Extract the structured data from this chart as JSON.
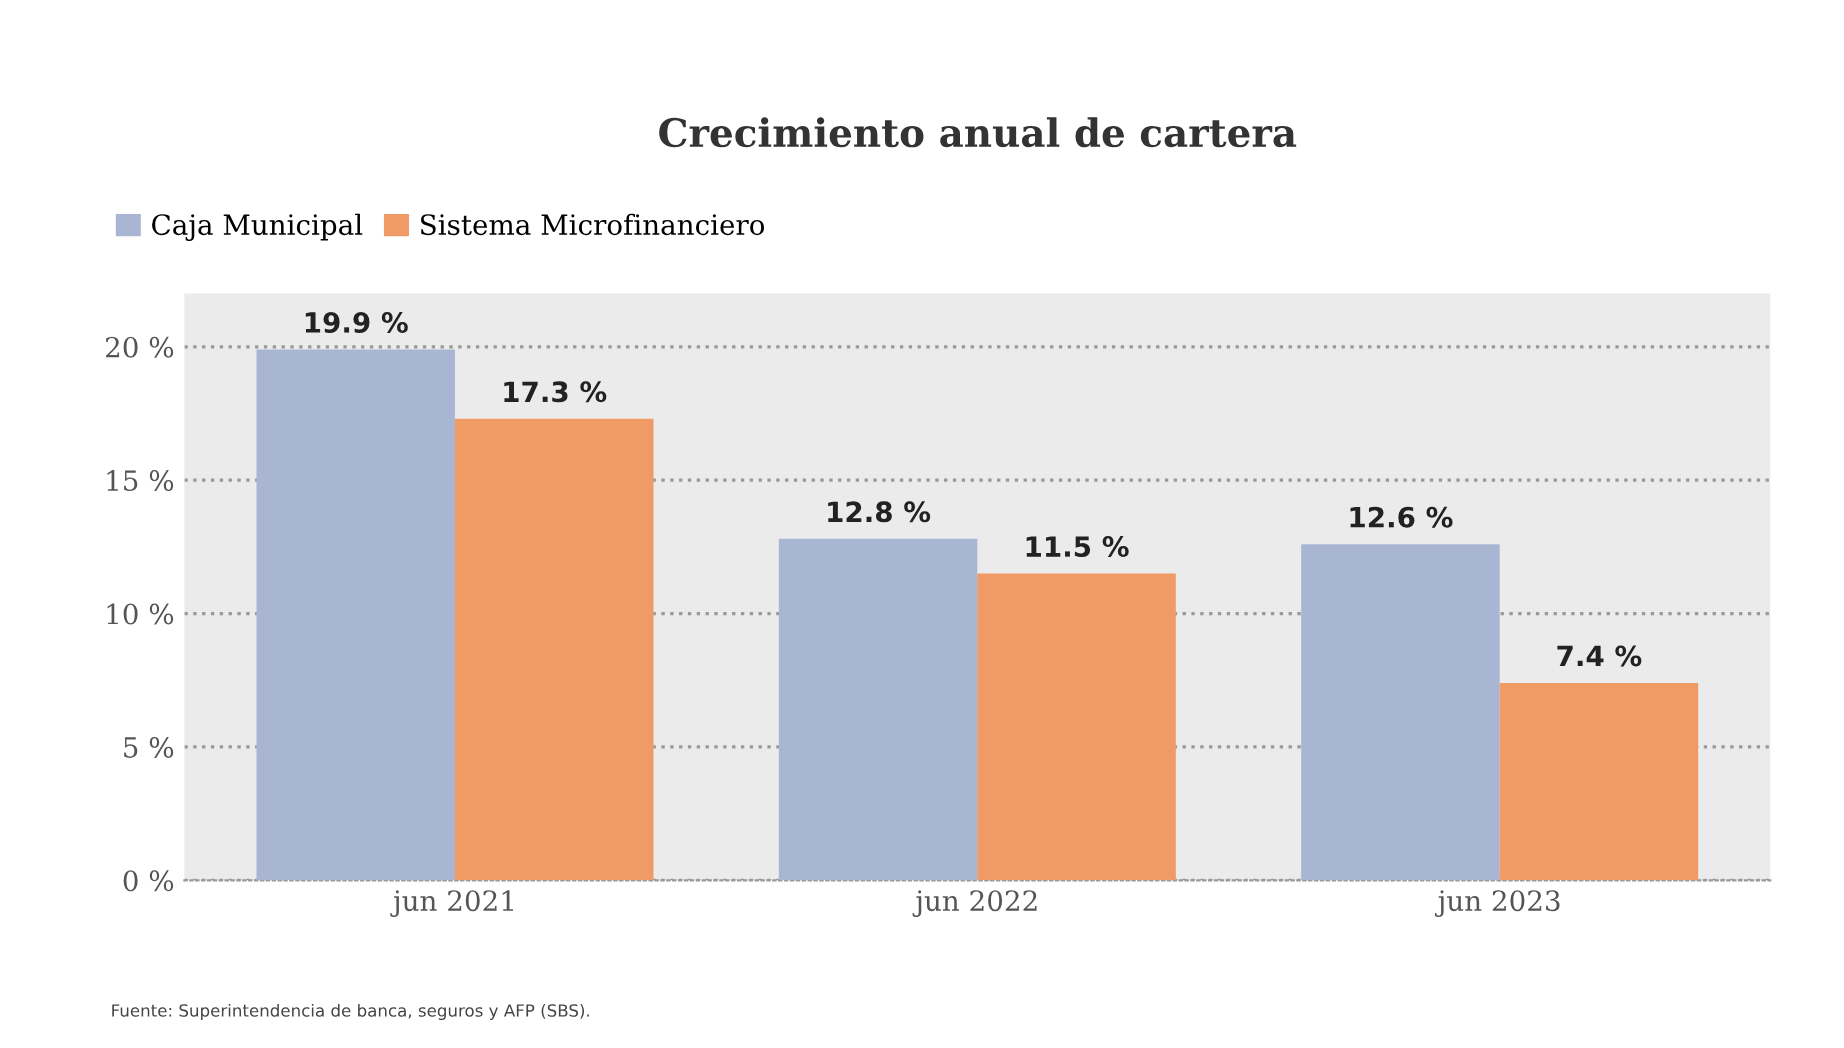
{
  "chart_data": {
    "type": "bar",
    "title": "Crecimiento anual de cartera",
    "categories": [
      "jun 2021",
      "jun 2022",
      "jun 2023"
    ],
    "series": [
      {
        "name": "Caja Municipal",
        "color": "#a9b6d3",
        "values": [
          19.9,
          12.8,
          12.6
        ],
        "value_labels": [
          "19.9 %",
          "12.8 %",
          "12.6 %"
        ]
      },
      {
        "name": "Sistema Microfinanciero",
        "color": "#f09a66",
        "values": [
          17.3,
          11.5,
          7.4
        ],
        "value_labels": [
          "17.3 %",
          "11.5 %",
          "7.4 %"
        ]
      }
    ],
    "ylim": [
      0,
      22
    ],
    "yticks": [
      {
        "value": 0,
        "label": "0 %"
      },
      {
        "value": 5,
        "label": "5 %"
      },
      {
        "value": 10,
        "label": "10 %"
      },
      {
        "value": 15,
        "label": "15 %"
      },
      {
        "value": 20,
        "label": "20 %"
      }
    ],
    "grid": "y",
    "legend": "top left",
    "annotations": [
      "Fuente: Superintendencia de banca, seguros y AFP (SBS)."
    ]
  }
}
